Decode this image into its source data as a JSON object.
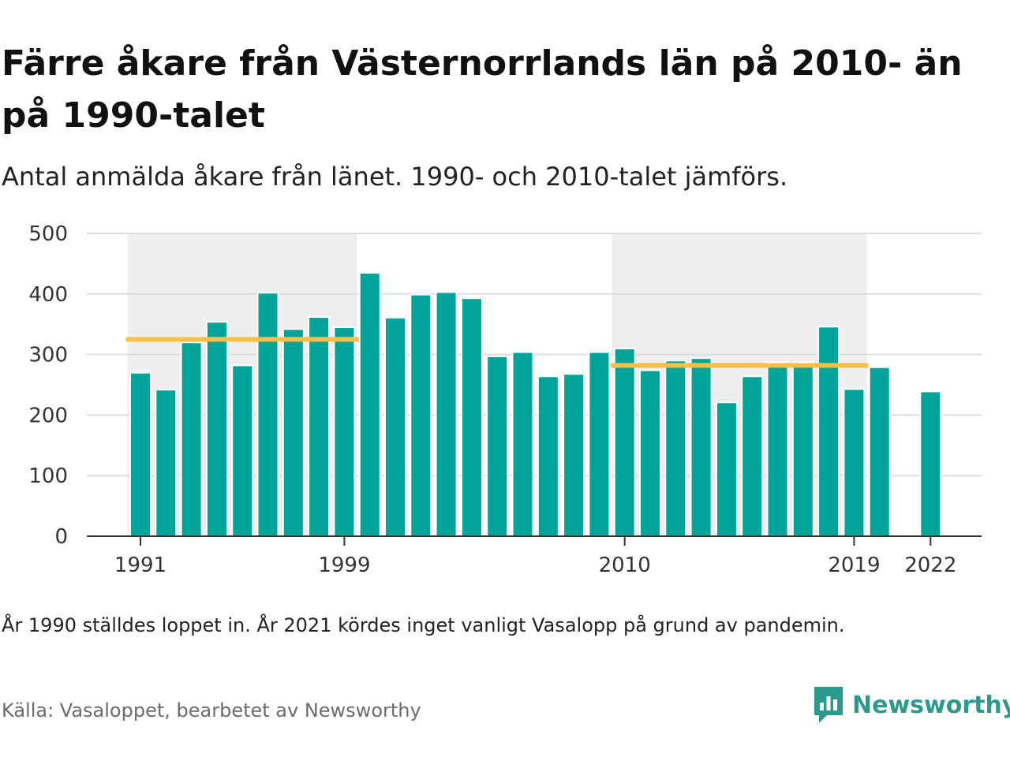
{
  "title": "Färre åkare från Västernorrlands län på 2010- än på 1990-talet",
  "subtitle": "Antal anmälda åkare från länet. 1990- och 2010-talet jämförs.",
  "note": "År 1990 ställdes loppet in. År 2021 kördes inget vanligt Vasalopp på grund av pandemin.",
  "source": "Källa: Vasaloppet, bearbetet av Newsworthy",
  "logo": {
    "text": "Newsworthy",
    "icon": "newsworthy-logo-icon"
  },
  "colors": {
    "bar": "#00a499",
    "avg_line": "#f5c04a",
    "shade": "#eeeeee",
    "grid": "#dddddd",
    "axis": "#333333",
    "brand": "#2a9a8c"
  },
  "chart_data": {
    "type": "bar",
    "title": "",
    "xlabel": "",
    "ylabel": "",
    "ylim": [
      0,
      500
    ],
    "yticks": [
      0,
      100,
      200,
      300,
      400,
      500
    ],
    "xticks": [
      1991,
      1999,
      2010,
      2019,
      2022
    ],
    "grid": true,
    "categories": [
      1991,
      1992,
      1993,
      1994,
      1995,
      1996,
      1997,
      1998,
      1999,
      2000,
      2001,
      2002,
      2003,
      2004,
      2005,
      2006,
      2007,
      2008,
      2009,
      2010,
      2011,
      2012,
      2013,
      2014,
      2015,
      2016,
      2017,
      2018,
      2019,
      2020,
      2021,
      2022
    ],
    "values": [
      270,
      242,
      320,
      354,
      282,
      402,
      342,
      362,
      345,
      435,
      361,
      399,
      403,
      393,
      297,
      304,
      264,
      268,
      304,
      310,
      274,
      290,
      294,
      221,
      264,
      287,
      287,
      346,
      243,
      279,
      null,
      239
    ],
    "shaded_ranges": [
      [
        1991,
        1999
      ],
      [
        2010,
        2019
      ]
    ],
    "averages": [
      {
        "from": 1991,
        "to": 1999,
        "value": 325
      },
      {
        "from": 2010,
        "to": 2019,
        "value": 282
      }
    ]
  }
}
